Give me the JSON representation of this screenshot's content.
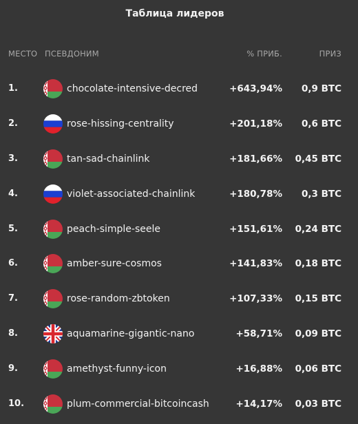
{
  "leaderboard": {
    "title": "Таблица лидеров",
    "columns": {
      "rank": "МЕСТО",
      "nickname": "ПСЕВДОНИМ",
      "profit": "% ПРИБ.",
      "prize": "ПРИЗ"
    },
    "rows": [
      {
        "rank": "1.",
        "flag": "belarus-flag",
        "nickname": "chocolate-intensive-decred",
        "profit": "+643,94%",
        "prize": "0,9 BTC"
      },
      {
        "rank": "2.",
        "flag": "russia-flag",
        "nickname": "rose-hissing-centrality",
        "profit": "+201,18%",
        "prize": "0,6 BTC"
      },
      {
        "rank": "3.",
        "flag": "belarus-flag",
        "nickname": "tan-sad-chainlink",
        "profit": "+181,66%",
        "prize": "0,45 BTC"
      },
      {
        "rank": "4.",
        "flag": "russia-flag",
        "nickname": "violet-associated-chainlink",
        "profit": "+180,78%",
        "prize": "0,3 BTC"
      },
      {
        "rank": "5.",
        "flag": "belarus-flag",
        "nickname": "peach-simple-seele",
        "profit": "+151,61%",
        "prize": "0,24 BTC"
      },
      {
        "rank": "6.",
        "flag": "belarus-flag",
        "nickname": "amber-sure-cosmos",
        "profit": "+141,83%",
        "prize": "0,18 BTC"
      },
      {
        "rank": "7.",
        "flag": "belarus-flag",
        "nickname": "rose-random-zbtoken",
        "profit": "+107,33%",
        "prize": "0,15 BTC"
      },
      {
        "rank": "8.",
        "flag": "uk-flag",
        "nickname": "aquamarine-gigantic-nano",
        "profit": "+58,71%",
        "prize": "0,09 BTC"
      },
      {
        "rank": "9.",
        "flag": "belarus-flag",
        "nickname": "amethyst-funny-icon",
        "profit": "+16,88%",
        "prize": "0,06 BTC"
      },
      {
        "rank": "10.",
        "flag": "belarus-flag",
        "nickname": "plum-commercial-bitcoincash",
        "profit": "+14,17%",
        "prize": "0,03 BTC"
      }
    ]
  },
  "colors": {
    "background": "#363636",
    "text": "#f4f4f4",
    "header_text": "#a7a7a7"
  }
}
